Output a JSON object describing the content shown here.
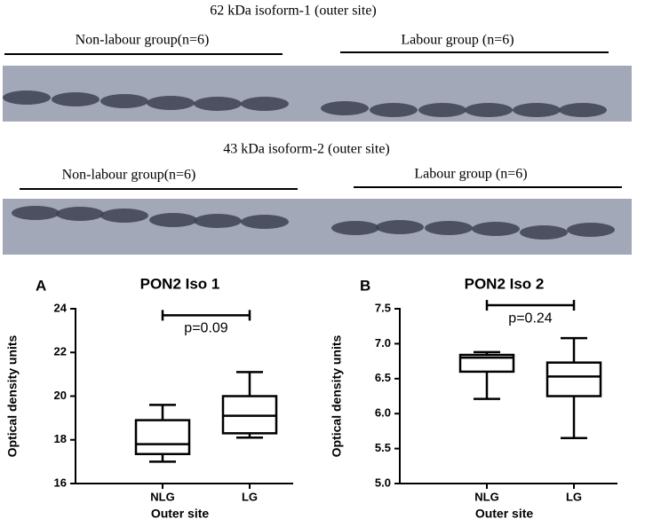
{
  "blots": [
    {
      "title": "62 kDa isoform-1 (outer site)",
      "groups": [
        "Non-labour group(n=6)",
        "Labour group (n=6)"
      ]
    },
    {
      "title": "43 kDa isoform-2 (outer site)",
      "groups": [
        "Non-labour group(n=6)",
        "Labour group (n=6)"
      ]
    }
  ],
  "chart_data": [
    {
      "type": "box",
      "panel": "A",
      "title": "PON2 Iso 1",
      "y_label": "Optical density units",
      "x_label": "Outer site",
      "categories": [
        "NLG",
        "LG"
      ],
      "min": [
        17.0,
        18.1
      ],
      "q1": [
        17.35,
        18.3
      ],
      "median": [
        17.8,
        19.1
      ],
      "q3": [
        18.9,
        20.0
      ],
      "max": [
        19.6,
        21.1
      ],
      "ylim": [
        16,
        24
      ],
      "yticks": [
        16,
        18,
        20,
        22,
        24
      ],
      "significance": {
        "label": "p=0.09",
        "y": 23.7
      }
    },
    {
      "type": "box",
      "panel": "B",
      "title": "PON2 Iso 2",
      "y_label": "Optical density units",
      "x_label": "Outer site",
      "categories": [
        "NLG",
        "LG"
      ],
      "min": [
        6.21,
        5.65
      ],
      "q1": [
        6.6,
        6.25
      ],
      "median": [
        6.8,
        6.53
      ],
      "q3": [
        6.84,
        6.73
      ],
      "max": [
        6.88,
        7.08
      ],
      "ylim": [
        5.0,
        7.5
      ],
      "yticks": [
        {
          "value": 5,
          "label": "5.0"
        },
        5.5,
        {
          "value": 6,
          "label": "6.0"
        },
        6.5,
        {
          "value": 7,
          "label": "7.0"
        },
        7.5
      ],
      "significance": {
        "label": "p=0.24",
        "y": 7.55
      }
    }
  ]
}
